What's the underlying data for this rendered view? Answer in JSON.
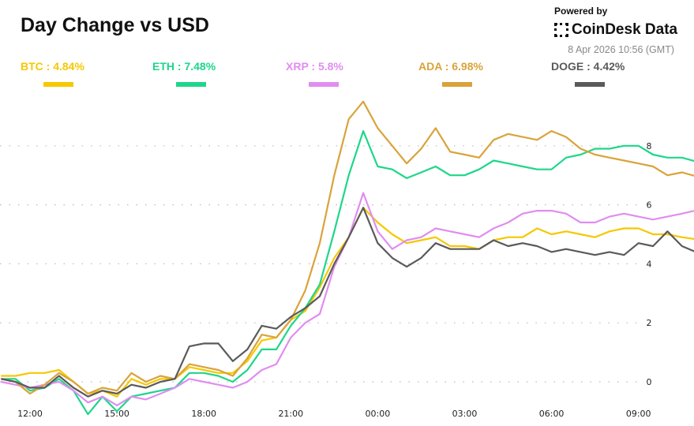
{
  "header": {
    "title": "Day Change vs USD",
    "powered_by": "Powered by",
    "brand": "CoinDesk Data",
    "timestamp": "8 Apr 2026 10:56 (GMT)"
  },
  "legend": [
    {
      "label": "BTC : 4.84%",
      "color": "#f5c800"
    },
    {
      "label": "ETH : 7.48%",
      "color": "#1ed68a"
    },
    {
      "label": "XRP : 5.8%",
      "color": "#e08df0"
    },
    {
      "label": "ADA : 6.98%",
      "color": "#d9a33a"
    },
    {
      "label": "DOGE : 4.42%",
      "color": "#5a5a5a"
    }
  ],
  "chart_data": {
    "type": "line",
    "title": "Day Change vs USD",
    "ylabel": "",
    "xlabel": "",
    "ylim": [
      -1.2,
      9.8
    ],
    "yticks": [
      0,
      2,
      4,
      6,
      8
    ],
    "xticks": [
      "12:00",
      "15:00",
      "18:00",
      "21:00",
      "00:00",
      "03:00",
      "06:00",
      "09:00"
    ],
    "y_axis_position": "right",
    "grid": "horizontal dotted",
    "legend_placement": "top",
    "x": [
      "11:00",
      "11:30",
      "12:00",
      "12:30",
      "13:00",
      "13:30",
      "14:00",
      "14:30",
      "15:00",
      "15:30",
      "16:00",
      "16:30",
      "17:00",
      "17:30",
      "18:00",
      "18:30",
      "19:00",
      "19:30",
      "20:00",
      "20:30",
      "21:00",
      "21:30",
      "22:00",
      "22:30",
      "23:00",
      "23:30",
      "00:00",
      "00:30",
      "01:00",
      "01:30",
      "02:00",
      "02:30",
      "03:00",
      "03:30",
      "04:00",
      "04:30",
      "05:00",
      "05:30",
      "06:00",
      "06:30",
      "07:00",
      "07:30",
      "08:00",
      "08:30",
      "09:00",
      "09:30",
      "10:00",
      "10:30",
      "10:56"
    ],
    "series": [
      {
        "name": "BTC",
        "color": "#f5c800",
        "values": [
          0.2,
          0.2,
          0.3,
          0.3,
          0.4,
          0.0,
          -0.4,
          -0.3,
          -0.5,
          0.1,
          -0.1,
          0.1,
          0.1,
          0.5,
          0.4,
          0.3,
          0.3,
          0.7,
          1.4,
          1.5,
          2.1,
          2.4,
          3.2,
          4.2,
          4.9,
          5.9,
          5.4,
          5.0,
          4.7,
          4.8,
          4.9,
          4.6,
          4.6,
          4.5,
          4.8,
          4.9,
          4.9,
          5.2,
          5.0,
          5.1,
          5.0,
          4.9,
          5.1,
          5.2,
          5.2,
          5.0,
          5.0,
          4.9,
          4.84
        ]
      },
      {
        "name": "ETH",
        "color": "#1ed68a",
        "values": [
          0.1,
          0.1,
          -0.3,
          -0.2,
          0.1,
          -0.3,
          -1.1,
          -0.5,
          -1.0,
          -0.5,
          -0.4,
          -0.3,
          -0.2,
          0.3,
          0.3,
          0.2,
          0.0,
          0.4,
          1.1,
          1.1,
          1.9,
          2.5,
          3.3,
          5.1,
          7.0,
          8.5,
          7.3,
          7.2,
          6.9,
          7.1,
          7.3,
          7.0,
          7.0,
          7.2,
          7.5,
          7.4,
          7.3,
          7.2,
          7.2,
          7.6,
          7.7,
          7.9,
          7.9,
          8.0,
          8.0,
          7.7,
          7.6,
          7.6,
          7.48
        ]
      },
      {
        "name": "XRP",
        "color": "#e08df0",
        "values": [
          0.0,
          -0.1,
          -0.2,
          -0.1,
          0.0,
          -0.3,
          -0.7,
          -0.5,
          -0.8,
          -0.5,
          -0.6,
          -0.4,
          -0.2,
          0.1,
          0.0,
          -0.1,
          -0.2,
          0.0,
          0.4,
          0.6,
          1.5,
          2.0,
          2.3,
          3.9,
          4.9,
          6.4,
          5.1,
          4.5,
          4.8,
          4.9,
          5.2,
          5.1,
          5.0,
          4.9,
          5.2,
          5.4,
          5.7,
          5.8,
          5.8,
          5.7,
          5.4,
          5.4,
          5.6,
          5.7,
          5.6,
          5.5,
          5.6,
          5.7,
          5.8
        ]
      },
      {
        "name": "ADA",
        "color": "#d9a33a",
        "values": [
          0.1,
          0.0,
          -0.4,
          -0.1,
          0.3,
          0.0,
          -0.4,
          -0.2,
          -0.3,
          0.3,
          0.0,
          0.2,
          0.1,
          0.6,
          0.5,
          0.4,
          0.2,
          0.8,
          1.6,
          1.5,
          2.1,
          3.1,
          4.7,
          7.0,
          8.9,
          9.5,
          8.6,
          8.0,
          7.4,
          7.9,
          8.6,
          7.8,
          7.7,
          7.6,
          8.2,
          8.4,
          8.3,
          8.2,
          8.5,
          8.3,
          7.9,
          7.7,
          7.6,
          7.5,
          7.4,
          7.3,
          7.0,
          7.1,
          6.98
        ]
      },
      {
        "name": "DOGE",
        "color": "#5a5a5a",
        "values": [
          0.1,
          0.0,
          -0.2,
          -0.2,
          0.2,
          -0.2,
          -0.5,
          -0.3,
          -0.4,
          -0.1,
          -0.2,
          0.0,
          0.1,
          1.2,
          1.3,
          1.3,
          0.7,
          1.1,
          1.9,
          1.8,
          2.2,
          2.5,
          2.9,
          4.0,
          4.9,
          5.9,
          4.7,
          4.2,
          3.9,
          4.2,
          4.7,
          4.5,
          4.5,
          4.5,
          4.8,
          4.6,
          4.7,
          4.6,
          4.4,
          4.5,
          4.4,
          4.3,
          4.4,
          4.3,
          4.7,
          4.6,
          5.1,
          4.6,
          4.42
        ]
      }
    ]
  }
}
